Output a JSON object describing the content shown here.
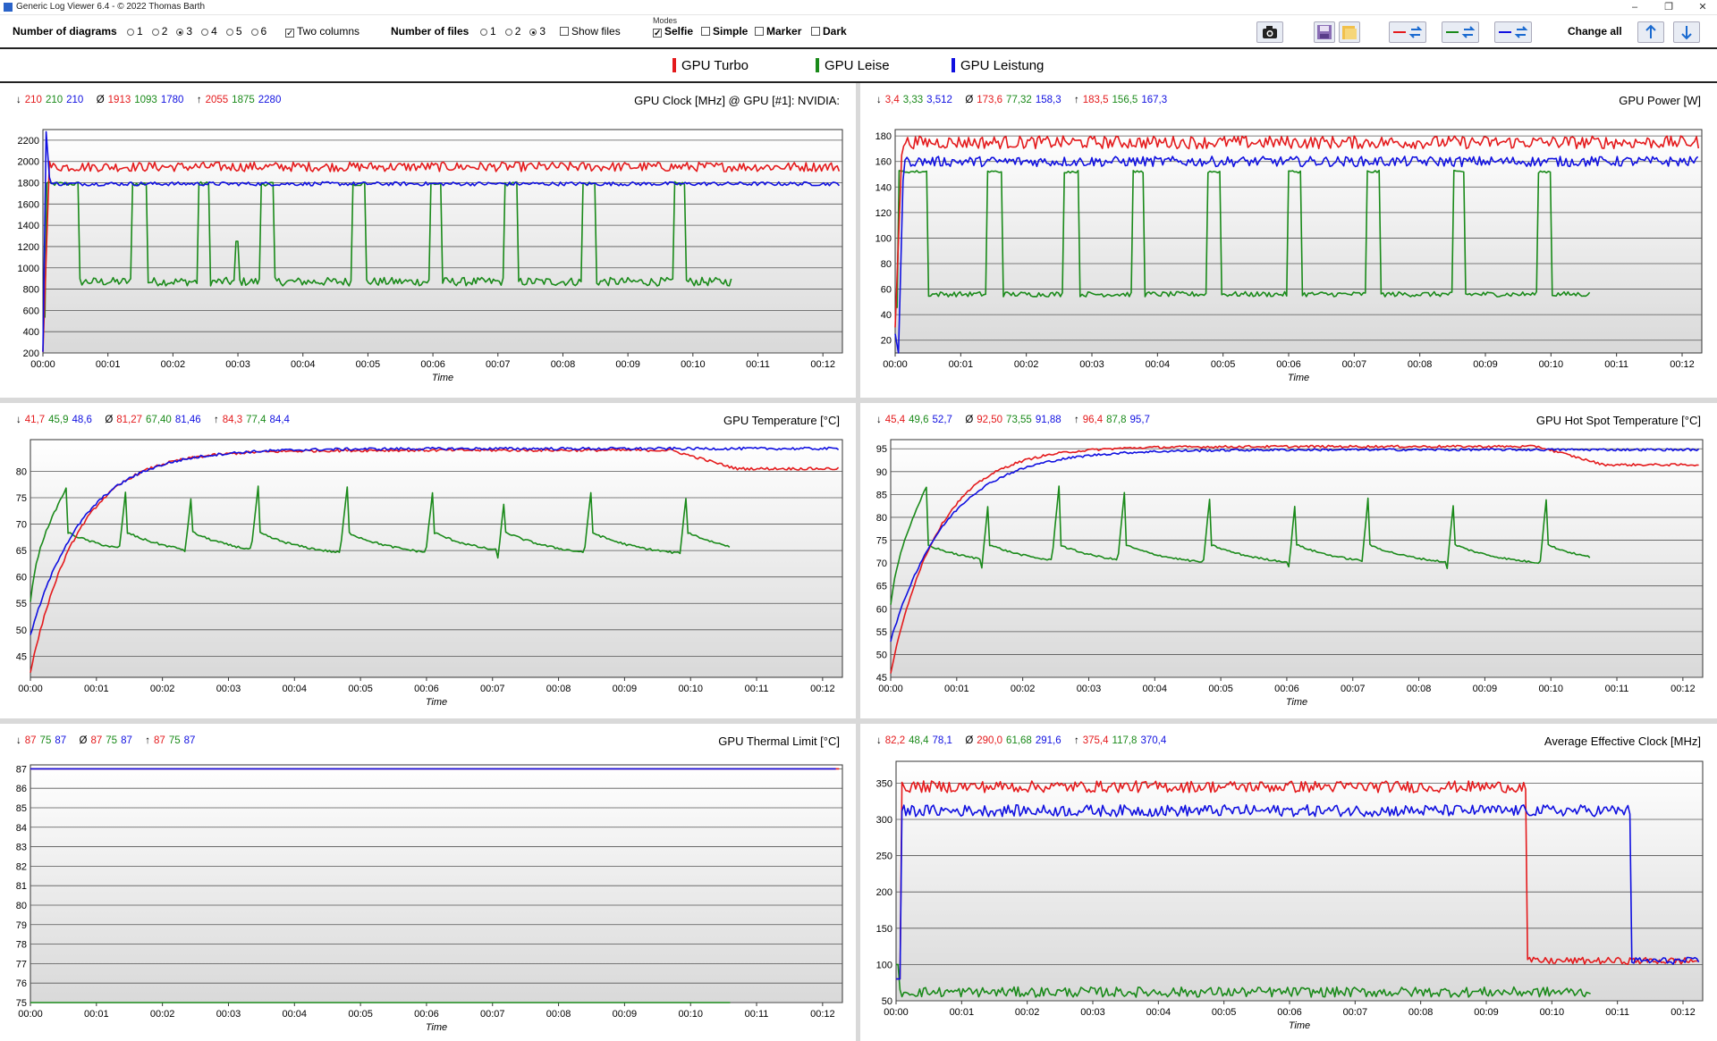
{
  "window": {
    "title": "Generic Log Viewer 6.4 - © 2022 Thomas Barth",
    "minimize_label": "–",
    "restore_label": "❐",
    "close_label": "✕"
  },
  "toolbar": {
    "num_diagrams_label": "Number of diagrams",
    "diagram_options": [
      "1",
      "2",
      "3",
      "4",
      "5",
      "6"
    ],
    "diagram_selected": "3",
    "two_columns_label": "Two columns",
    "two_columns_checked": true,
    "num_files_label": "Number of files",
    "file_options": [
      "1",
      "2",
      "3"
    ],
    "file_selected": "3",
    "show_files_label": "Show files",
    "modes_label": "Modes",
    "selfie_label": "Selfie",
    "simple_label": "Simple",
    "marker_label": "Marker",
    "dark_label": "Dark",
    "change_all_label": "Change all",
    "icons": [
      "camera-icon",
      "save-icon",
      "folder-icon",
      "swap-red-icon",
      "swap-green-icon",
      "swap-blue-icon",
      "arrow-up-icon",
      "arrow-down-icon"
    ]
  },
  "colors": {
    "red": "#e41a1c",
    "green": "#1a8a1a",
    "blue": "#1010e0"
  },
  "legend": [
    {
      "name": "GPU Turbo",
      "color": "#e41a1c"
    },
    {
      "name": "GPU Leise",
      "color": "#1a8a1a"
    },
    {
      "name": "GPU Leistung",
      "color": "#1010e0"
    }
  ],
  "panels": [
    {
      "title": "GPU Clock [MHz] @ GPU [#1]: NVIDIA:",
      "min": [
        "210",
        "210",
        "210"
      ],
      "avg": [
        "1913",
        "1093",
        "1780"
      ],
      "max": [
        "2055",
        "1875",
        "2280"
      ],
      "xlabel": "Time"
    },
    {
      "title": "GPU Power [W]",
      "min": [
        "3,4",
        "3,33",
        "3,512"
      ],
      "avg": [
        "173,6",
        "77,32",
        "158,3"
      ],
      "max": [
        "183,5",
        "156,5",
        "167,3"
      ],
      "xlabel": "Time"
    },
    {
      "title": "GPU Temperature [°C]",
      "min": [
        "41,7",
        "45,9",
        "48,6"
      ],
      "avg": [
        "81,27",
        "67,40",
        "81,46"
      ],
      "max": [
        "84,3",
        "77,4",
        "84,4"
      ],
      "xlabel": "Time"
    },
    {
      "title": "GPU Hot Spot Temperature [°C]",
      "min": [
        "45,4",
        "49,6",
        "52,7"
      ],
      "avg": [
        "92,50",
        "73,55",
        "91,88"
      ],
      "max": [
        "96,4",
        "87,8",
        "95,7"
      ],
      "xlabel": "Time"
    },
    {
      "title": "GPU Thermal Limit [°C]",
      "min": [
        "87",
        "75",
        "87"
      ],
      "avg": [
        "87",
        "75",
        "87"
      ],
      "max": [
        "87",
        "75",
        "87"
      ],
      "xlabel": "Time"
    },
    {
      "title": "Average Effective Clock [MHz]",
      "min": [
        "82,2",
        "48,4",
        "78,1"
      ],
      "avg": [
        "290,0",
        "61,68",
        "291,6"
      ],
      "max": [
        "375,4",
        "117,8",
        "370,4"
      ],
      "xlabel": "Time"
    }
  ],
  "chart_data": [
    {
      "type": "line",
      "title": "GPU Clock [MHz] @ GPU [#1]: NVIDIA:",
      "xlabel": "Time",
      "ylim": [
        200,
        2300
      ],
      "yticks": [
        "200",
        "400",
        "600",
        "800",
        "1000",
        "1200",
        "1400",
        "1600",
        "1800",
        "2000",
        "2200"
      ],
      "xticks": [
        "00:00",
        "00:01",
        "00:02",
        "00:03",
        "00:04",
        "00:05",
        "00:06",
        "00:07",
        "00:08",
        "00:09",
        "00:10",
        "00:11",
        "00:12"
      ],
      "x_end_min": 12.3,
      "series": [
        {
          "name": "GPU Turbo",
          "base": 1950,
          "noise": 45,
          "start": [
            [
              0,
              210
            ],
            [
              0.1,
              2000
            ]
          ],
          "end": 12.25
        },
        {
          "name": "GPU Leise",
          "pattern": "pulse",
          "high": 1790,
          "low": 870,
          "noise": 40,
          "spike": 1250,
          "pulses": [
            [
              0.0,
              0.55
            ],
            [
              1.38,
              1.6
            ],
            [
              2.38,
              2.57
            ],
            [
              3.33,
              3.55
            ],
            [
              4.75,
              4.97
            ],
            [
              5.95,
              6.15
            ],
            [
              7.1,
              7.3
            ],
            [
              8.3,
              8.5
            ],
            [
              9.7,
              9.87
            ]
          ],
          "end": 10.6
        },
        {
          "name": "GPU Leistung",
          "base": 1790,
          "noise": 18,
          "start": [
            [
              0,
              210
            ],
            [
              0.05,
              2280
            ],
            [
              0.1,
              1850
            ]
          ],
          "end": 12.25
        }
      ]
    },
    {
      "type": "line",
      "title": "GPU Power [W]",
      "xlabel": "Time",
      "ylim": [
        10,
        185
      ],
      "yticks": [
        "20",
        "40",
        "60",
        "80",
        "100",
        "120",
        "140",
        "160",
        "180"
      ],
      "xticks": [
        "00:00",
        "00:01",
        "00:02",
        "00:03",
        "00:04",
        "00:05",
        "00:06",
        "00:07",
        "00:08",
        "00:09",
        "00:10",
        "00:11",
        "00:12"
      ],
      "x_end_min": 12.3,
      "series": [
        {
          "name": "GPU Turbo",
          "base": 175,
          "noise": 5,
          "start": [
            [
              0,
              30
            ],
            [
              0.1,
              165
            ]
          ],
          "end": 12.25
        },
        {
          "name": "GPU Leise",
          "pattern": "pulse",
          "high": 152,
          "low": 56,
          "noise": 2,
          "pulses": [
            [
              0.0,
              0.5
            ],
            [
              1.4,
              1.65
            ],
            [
              2.55,
              2.8
            ],
            [
              3.6,
              3.8
            ],
            [
              4.75,
              4.95
            ],
            [
              6.0,
              6.2
            ],
            [
              7.2,
              7.4
            ],
            [
              8.5,
              8.7
            ],
            [
              9.8,
              10.0
            ]
          ],
          "end": 10.6
        },
        {
          "name": "GPU Leistung",
          "base": 160,
          "noise": 4,
          "start": [
            [
              0,
              25
            ],
            [
              0.05,
              5
            ],
            [
              0.12,
              145
            ]
          ],
          "end": 12.25
        }
      ]
    },
    {
      "type": "line",
      "title": "GPU Temperature [°C]",
      "xlabel": "Time",
      "ylim": [
        41,
        86
      ],
      "yticks": [
        "45",
        "50",
        "55",
        "60",
        "65",
        "70",
        "75",
        "80"
      ],
      "xticks": [
        "00:00",
        "00:01",
        "00:02",
        "00:03",
        "00:04",
        "00:05",
        "00:06",
        "00:07",
        "00:08",
        "00:09",
        "00:10",
        "00:11",
        "00:12"
      ],
      "x_end_min": 12.3,
      "series": [
        {
          "name": "GPU Turbo",
          "pattern": "warmup",
          "start_v": 42,
          "plateau": 84,
          "tau": 1.6,
          "drop_at": 9.7,
          "drop_to": 80.5,
          "end": 12.25
        },
        {
          "name": "GPU Leise",
          "pattern": "sawtooth",
          "low": 63.5,
          "high": 77,
          "pulses": [
            0.55,
            1.45,
            2.45,
            3.45,
            4.8,
            6.1,
            7.2,
            8.5,
            9.95
          ],
          "end": 10.6
        },
        {
          "name": "GPU Leistung",
          "pattern": "warmup",
          "start_v": 49,
          "plateau": 84.3,
          "tau": 1.8,
          "end": 12.25
        }
      ]
    },
    {
      "type": "line",
      "title": "GPU Hot Spot Temperature [°C]",
      "xlabel": "Time",
      "ylim": [
        45,
        97
      ],
      "yticks": [
        "45",
        "50",
        "55",
        "60",
        "65",
        "70",
        "75",
        "80",
        "85",
        "90",
        "95"
      ],
      "xticks": [
        "00:00",
        "00:01",
        "00:02",
        "00:03",
        "00:04",
        "00:05",
        "00:06",
        "00:07",
        "00:08",
        "00:09",
        "00:10",
        "00:11",
        "00:12"
      ],
      "x_end_min": 12.3,
      "series": [
        {
          "name": "GPU Turbo",
          "pattern": "warmup",
          "start_v": 46,
          "plateau": 95.5,
          "tau": 1.6,
          "drop_at": 9.8,
          "drop_to": 91.5,
          "end": 12.25
        },
        {
          "name": "GPU Leise",
          "pattern": "sawtooth",
          "low": 69,
          "high": 87,
          "pulses": [
            0.55,
            1.5,
            2.55,
            3.55,
            4.85,
            6.15,
            7.25,
            8.55,
            9.95
          ],
          "end": 10.6
        },
        {
          "name": "GPU Leistung",
          "pattern": "warmup",
          "start_v": 53,
          "plateau": 94.8,
          "tau": 1.9,
          "end": 12.25
        }
      ]
    },
    {
      "type": "line",
      "title": "GPU Thermal Limit [°C]",
      "xlabel": "Time",
      "ylim": [
        75,
        87.2
      ],
      "yticks": [
        "75",
        "76",
        "77",
        "78",
        "79",
        "80",
        "81",
        "82",
        "83",
        "84",
        "85",
        "86",
        "87"
      ],
      "xticks": [
        "00:00",
        "00:01",
        "00:02",
        "00:03",
        "00:04",
        "00:05",
        "00:06",
        "00:07",
        "00:08",
        "00:09",
        "00:10",
        "00:11",
        "00:12"
      ],
      "x_end_min": 12.3,
      "series": [
        {
          "name": "GPU Turbo",
          "pattern": "flat",
          "value": 87,
          "end": 12.25
        },
        {
          "name": "GPU Leise",
          "pattern": "flat",
          "value": 75,
          "end": 10.6
        },
        {
          "name": "GPU Leistung",
          "pattern": "flat",
          "value": 87,
          "end": 12.2
        }
      ]
    },
    {
      "type": "line",
      "title": "Average Effective Clock [MHz]",
      "xlabel": "Time",
      "ylim": [
        50,
        380
      ],
      "yticks": [
        "50",
        "100",
        "150",
        "200",
        "250",
        "300",
        "350"
      ],
      "xticks": [
        "00:00",
        "00:01",
        "00:02",
        "00:03",
        "00:04",
        "00:05",
        "00:06",
        "00:07",
        "00:08",
        "00:09",
        "00:10",
        "00:11",
        "00:12"
      ],
      "x_end_min": 12.3,
      "series": [
        {
          "name": "GPU Turbo",
          "pattern": "step",
          "high": 345,
          "low": 105,
          "noise": 8,
          "step_at": 9.6,
          "end": 12.25
        },
        {
          "name": "GPU Leise",
          "pattern": "noise",
          "base": 62,
          "noise": 7,
          "tail": [
            [
              10.4,
              60
            ],
            [
              10.6,
              90
            ]
          ],
          "end": 10.6
        },
        {
          "name": "GPU Leistung",
          "pattern": "step",
          "high": 312,
          "low": 105,
          "noise": 8,
          "step_at": 11.2,
          "end": 12.25
        }
      ]
    }
  ]
}
